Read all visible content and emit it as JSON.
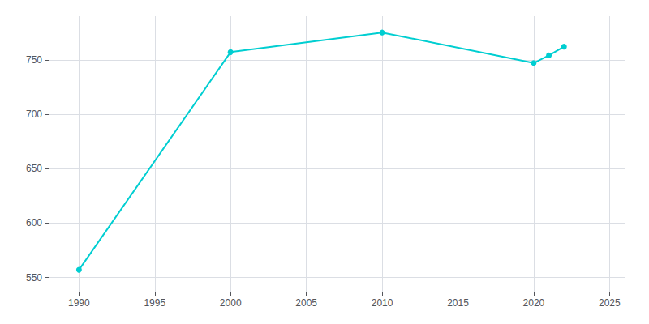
{
  "chart_data": {
    "type": "line",
    "x": [
      1990,
      2000,
      2010,
      2020,
      2021,
      2022
    ],
    "values": [
      557,
      757,
      775,
      747,
      754,
      762
    ],
    "color": "#00CED1",
    "marker": "circle",
    "xlim": [
      1988,
      2026
    ],
    "xticks": [
      1990,
      1995,
      2000,
      2005,
      2010,
      2015,
      2020,
      2025
    ],
    "ylim": [
      537,
      790
    ],
    "yticks": [
      550,
      600,
      650,
      700,
      750
    ],
    "grid": true
  }
}
